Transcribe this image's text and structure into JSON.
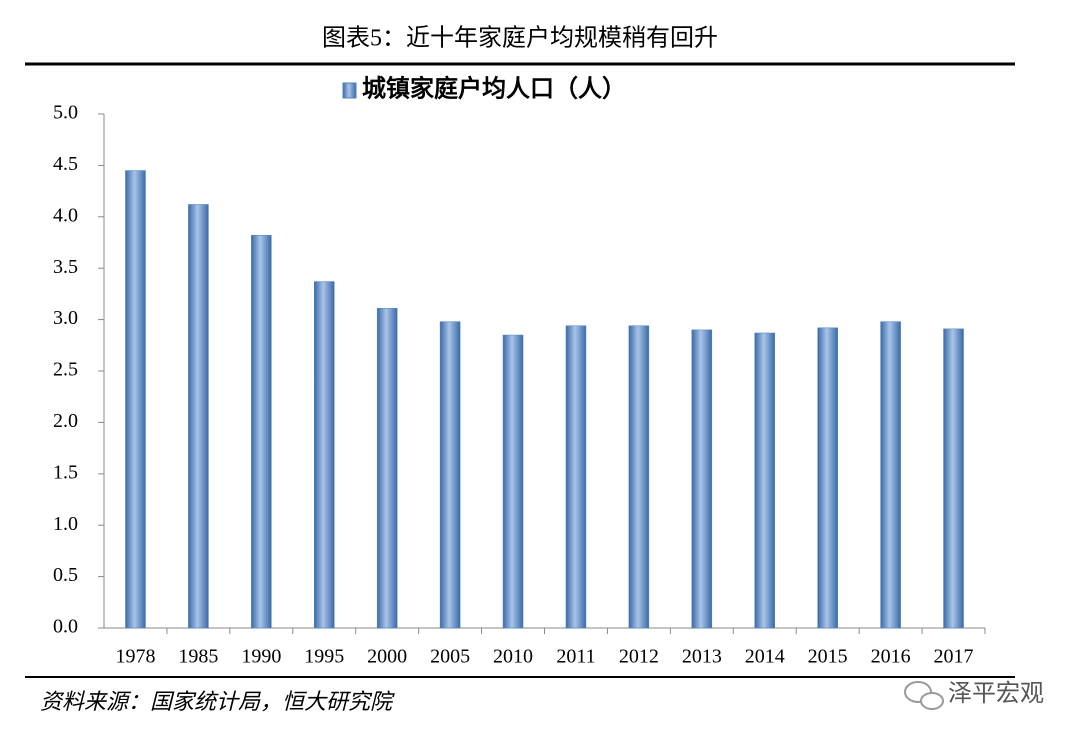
{
  "chart_data": {
    "type": "bar",
    "title": "图表5：近十年家庭户均规模稍有回升",
    "categories": [
      "1978",
      "1985",
      "1990",
      "1995",
      "2000",
      "2005",
      "2010",
      "2011",
      "2012",
      "2013",
      "2014",
      "2015",
      "2016",
      "2017"
    ],
    "series": [
      {
        "name": "城镇家庭户均人口（人）",
        "color": "#4f81bd",
        "values": [
          4.45,
          4.12,
          3.82,
          3.37,
          3.11,
          2.98,
          2.85,
          2.94,
          2.94,
          2.9,
          2.87,
          2.92,
          2.98,
          2.91
        ]
      }
    ],
    "ylim": [
      0,
      5
    ],
    "yticks": [
      {
        "value": 0,
        "label": "0.0"
      },
      0.5,
      {
        "value": 1,
        "label": "1.0"
      },
      1.5,
      {
        "value": 2,
        "label": "2.0"
      },
      2.5,
      {
        "value": 3,
        "label": "3.0"
      },
      3.5,
      {
        "value": 4,
        "label": "4.0"
      },
      4.5,
      {
        "value": 5,
        "label": "5.0"
      }
    ],
    "grid": false,
    "legend": "top",
    "source": "资料来源：国家统计局，恒大研究院",
    "watermark": "泽平宏观"
  }
}
